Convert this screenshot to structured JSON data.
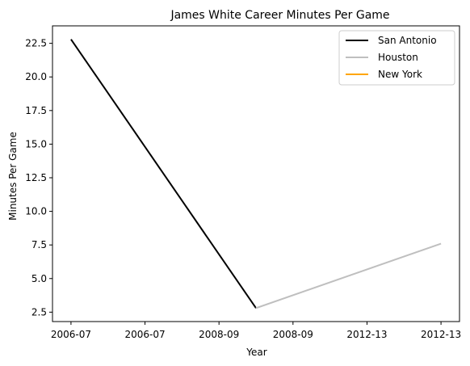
{
  "chart_data": {
    "type": "line",
    "title": "James White  Career Minutes Per Game",
    "xlabel": "Year",
    "ylabel": "Minutes Per Game",
    "x_tick_labels": [
      "2006-07",
      "2006-07",
      "2008-09",
      "2008-09",
      "2012-13",
      "2012-13"
    ],
    "y_ticks": [
      2.5,
      5.0,
      7.5,
      10.0,
      12.5,
      15.0,
      17.5,
      20.0,
      22.5
    ],
    "y_tick_labels": [
      "2.5",
      "5.0",
      "7.5",
      "10.0",
      "12.5",
      "15.0",
      "17.5",
      "20.0",
      "22.5"
    ],
    "xlim": [
      -0.25,
      5.25
    ],
    "ylim": [
      1.8,
      23.8
    ],
    "grid": false,
    "legend_position": "top-right",
    "series": [
      {
        "name": "San Antonio",
        "color": "#000000",
        "points": [
          [
            0,
            22.8
          ],
          [
            2.5,
            2.8
          ]
        ]
      },
      {
        "name": "Houston",
        "color": "#bfbfbf",
        "points": [
          [
            2.5,
            2.8
          ],
          [
            5,
            7.6
          ]
        ]
      },
      {
        "name": "New York",
        "color": "#ffa500",
        "points": []
      }
    ]
  }
}
